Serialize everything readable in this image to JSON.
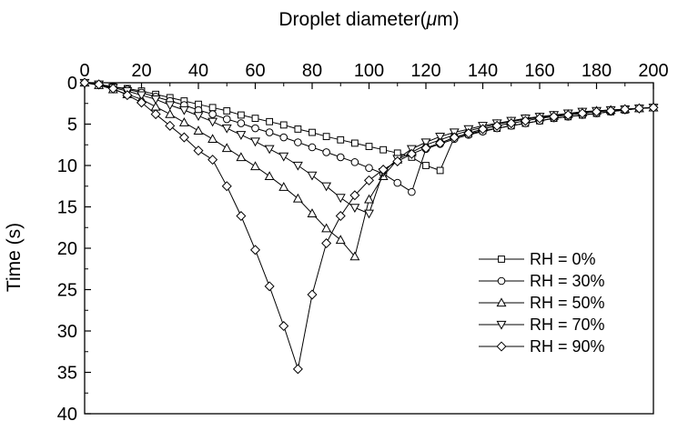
{
  "chart_data": {
    "type": "line",
    "xlabel": "Droplet diameter(μm)",
    "ylabel": "Time (s)",
    "xlim": [
      0,
      200
    ],
    "ylim": [
      0,
      40
    ],
    "y_inverted": true,
    "x_axis_position": "top",
    "grid": false,
    "legend_position": "lower-right",
    "xticks": [
      "0",
      "20",
      "40",
      "60",
      "80",
      "100",
      "120",
      "140",
      "160",
      "180",
      "200"
    ],
    "yticks": [
      "0",
      "5",
      "10",
      "15",
      "20",
      "25",
      "30",
      "35",
      "40"
    ],
    "series": [
      {
        "name": "RH = 0%",
        "marker": "square",
        "points": [
          [
            0,
            0
          ],
          [
            5,
            0.2
          ],
          [
            10,
            0.5
          ],
          [
            15,
            0.7
          ],
          [
            20,
            1.0
          ],
          [
            25,
            1.4
          ],
          [
            30,
            1.8
          ],
          [
            35,
            2.2
          ],
          [
            40,
            2.6
          ],
          [
            45,
            3.0
          ],
          [
            50,
            3.4
          ],
          [
            55,
            3.9
          ],
          [
            60,
            4.3
          ],
          [
            65,
            4.7
          ],
          [
            70,
            5.1
          ],
          [
            75,
            5.6
          ],
          [
            80,
            6.0
          ],
          [
            85,
            6.5
          ],
          [
            90,
            6.9
          ],
          [
            95,
            7.3
          ],
          [
            100,
            7.7
          ],
          [
            105,
            8.1
          ],
          [
            110,
            8.5
          ],
          [
            115,
            9.0
          ],
          [
            120,
            10.0
          ],
          [
            125,
            10.6
          ],
          [
            130,
            6.6
          ],
          [
            135,
            6.2
          ],
          [
            140,
            5.8
          ],
          [
            145,
            5.5
          ],
          [
            150,
            5.2
          ],
          [
            155,
            4.9
          ],
          [
            160,
            4.6
          ],
          [
            165,
            4.3
          ],
          [
            170,
            4.1
          ],
          [
            175,
            3.9
          ],
          [
            180,
            3.7
          ],
          [
            185,
            3.5
          ],
          [
            190,
            3.3
          ],
          [
            195,
            3.1
          ],
          [
            200,
            3.0
          ]
        ]
      },
      {
        "name": "RH = 30%",
        "marker": "circle",
        "points": [
          [
            0,
            0
          ],
          [
            5,
            0.2
          ],
          [
            10,
            0.5
          ],
          [
            15,
            0.8
          ],
          [
            20,
            1.2
          ],
          [
            25,
            1.7
          ],
          [
            30,
            2.2
          ],
          [
            35,
            2.7
          ],
          [
            40,
            3.3
          ],
          [
            45,
            3.8
          ],
          [
            50,
            4.4
          ],
          [
            55,
            4.9
          ],
          [
            60,
            5.5
          ],
          [
            65,
            6.0
          ],
          [
            70,
            6.6
          ],
          [
            75,
            7.2
          ],
          [
            80,
            7.8
          ],
          [
            85,
            8.4
          ],
          [
            90,
            9.0
          ],
          [
            95,
            9.6
          ],
          [
            100,
            10.3
          ],
          [
            105,
            11.0
          ],
          [
            110,
            12.1
          ],
          [
            115,
            13.2
          ],
          [
            120,
            8.0
          ],
          [
            125,
            7.4
          ],
          [
            130,
            6.8
          ],
          [
            135,
            6.3
          ],
          [
            140,
            5.9
          ],
          [
            145,
            5.5
          ],
          [
            150,
            5.2
          ],
          [
            155,
            4.9
          ],
          [
            160,
            4.6
          ],
          [
            165,
            4.3
          ],
          [
            170,
            4.1
          ],
          [
            175,
            3.9
          ],
          [
            180,
            3.7
          ],
          [
            185,
            3.5
          ],
          [
            190,
            3.3
          ],
          [
            195,
            3.1
          ],
          [
            200,
            3.0
          ]
        ]
      },
      {
        "name": "RH = 50%",
        "marker": "triangle-up",
        "points": [
          [
            0,
            0
          ],
          [
            5,
            0.3
          ],
          [
            10,
            0.8
          ],
          [
            15,
            1.4
          ],
          [
            20,
            2.0
          ],
          [
            25,
            2.9
          ],
          [
            30,
            3.8
          ],
          [
            35,
            4.8
          ],
          [
            40,
            5.8
          ],
          [
            45,
            6.8
          ],
          [
            50,
            7.9
          ],
          [
            55,
            9.0
          ],
          [
            60,
            10.1
          ],
          [
            65,
            11.3
          ],
          [
            70,
            12.6
          ],
          [
            75,
            14.0
          ],
          [
            80,
            15.8
          ],
          [
            85,
            17.6
          ],
          [
            90,
            19.0
          ],
          [
            95,
            21.0
          ],
          [
            100,
            14.1
          ],
          [
            105,
            11.3
          ],
          [
            110,
            9.3
          ],
          [
            115,
            8.4
          ],
          [
            120,
            7.5
          ],
          [
            125,
            6.9
          ],
          [
            130,
            6.3
          ],
          [
            135,
            5.8
          ],
          [
            140,
            5.4
          ],
          [
            145,
            5.0
          ],
          [
            150,
            4.7
          ],
          [
            155,
            4.4
          ],
          [
            160,
            4.2
          ],
          [
            165,
            4.0
          ],
          [
            170,
            3.8
          ],
          [
            175,
            3.6
          ],
          [
            180,
            3.4
          ],
          [
            185,
            3.3
          ],
          [
            190,
            3.2
          ],
          [
            195,
            3.1
          ],
          [
            200,
            3.0
          ]
        ]
      },
      {
        "name": "RH = 70%",
        "marker": "triangle-down",
        "points": [
          [
            0,
            0
          ],
          [
            5,
            0.2
          ],
          [
            10,
            0.6
          ],
          [
            15,
            1.0
          ],
          [
            20,
            1.5
          ],
          [
            25,
            2.0
          ],
          [
            30,
            2.7
          ],
          [
            35,
            3.3
          ],
          [
            40,
            4.0
          ],
          [
            45,
            4.7
          ],
          [
            50,
            5.5
          ],
          [
            55,
            6.3
          ],
          [
            60,
            7.1
          ],
          [
            65,
            8.0
          ],
          [
            70,
            8.9
          ],
          [
            75,
            10.0
          ],
          [
            80,
            11.2
          ],
          [
            85,
            12.5
          ],
          [
            90,
            13.9
          ],
          [
            95,
            15.1
          ],
          [
            100,
            15.8
          ],
          [
            105,
            10.8
          ],
          [
            110,
            9.2
          ],
          [
            115,
            8.0
          ],
          [
            120,
            7.2
          ],
          [
            125,
            6.5
          ],
          [
            130,
            6.0
          ],
          [
            135,
            5.6
          ],
          [
            140,
            5.2
          ],
          [
            145,
            4.9
          ],
          [
            150,
            4.6
          ],
          [
            155,
            4.3
          ],
          [
            160,
            4.1
          ],
          [
            165,
            3.9
          ],
          [
            170,
            3.7
          ],
          [
            175,
            3.5
          ],
          [
            180,
            3.4
          ],
          [
            185,
            3.3
          ],
          [
            190,
            3.2
          ],
          [
            195,
            3.1
          ],
          [
            200,
            3.0
          ]
        ]
      },
      {
        "name": "RH = 90%",
        "marker": "diamond",
        "points": [
          [
            0,
            0
          ],
          [
            5,
            0.2
          ],
          [
            10,
            0.7
          ],
          [
            15,
            1.5
          ],
          [
            20,
            2.4
          ],
          [
            25,
            3.8
          ],
          [
            30,
            5.2
          ],
          [
            35,
            6.6
          ],
          [
            40,
            8.2
          ],
          [
            45,
            9.3
          ],
          [
            50,
            12.5
          ],
          [
            55,
            16.1
          ],
          [
            60,
            20.2
          ],
          [
            65,
            24.6
          ],
          [
            70,
            29.4
          ],
          [
            75,
            34.6
          ],
          [
            80,
            25.6
          ],
          [
            85,
            19.4
          ],
          [
            90,
            16.1
          ],
          [
            95,
            13.6
          ],
          [
            100,
            11.8
          ],
          [
            105,
            10.5
          ],
          [
            110,
            9.5
          ],
          [
            115,
            8.6
          ],
          [
            120,
            7.9
          ],
          [
            125,
            7.3
          ],
          [
            130,
            6.6
          ],
          [
            135,
            6.1
          ],
          [
            140,
            5.6
          ],
          [
            145,
            5.2
          ],
          [
            150,
            4.9
          ],
          [
            155,
            4.6
          ],
          [
            160,
            4.3
          ],
          [
            165,
            4.1
          ],
          [
            170,
            3.9
          ],
          [
            175,
            3.7
          ],
          [
            180,
            3.5
          ],
          [
            185,
            3.4
          ],
          [
            190,
            3.2
          ],
          [
            195,
            3.1
          ],
          [
            200,
            3.0
          ]
        ]
      }
    ]
  }
}
